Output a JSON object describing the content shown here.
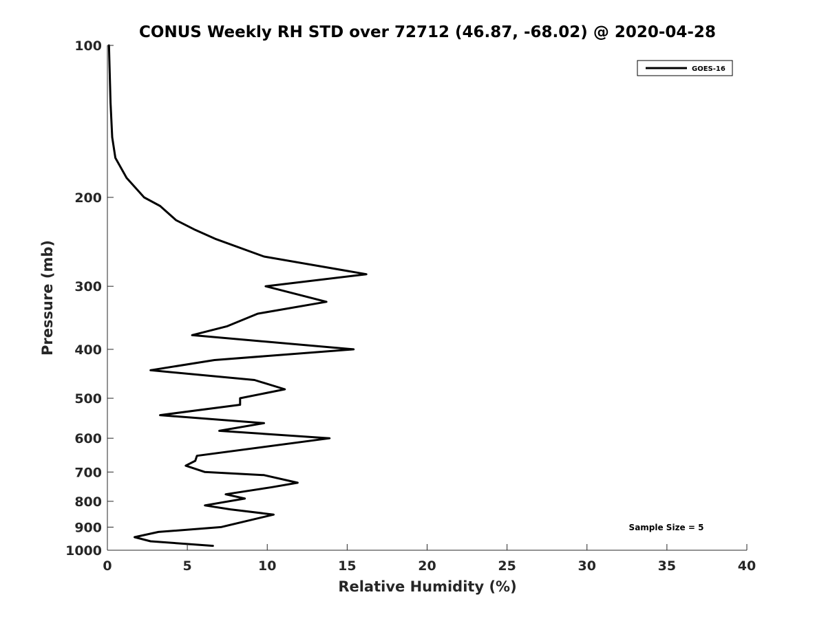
{
  "chart_data": {
    "type": "line",
    "title": "CONUS Weekly RH STD over 72712 (46.87, -68.02) @ 2020-04-28",
    "xlabel": "Relative Humidity (%)",
    "ylabel": "Pressure (mb)",
    "xlim": [
      0,
      40
    ],
    "ylim": [
      100,
      1000
    ],
    "yscale": "log",
    "y_reversed": true,
    "xticks": [
      0,
      5,
      10,
      15,
      20,
      25,
      30,
      35,
      40
    ],
    "yticks": [
      100,
      200,
      300,
      400,
      500,
      600,
      700,
      800,
      900,
      1000
    ],
    "grid": false,
    "legend_position": "top-right",
    "annotation": "Sample Size = 5",
    "series": [
      {
        "name": "GOES-16",
        "color": "#000000",
        "points": [
          [
            6.6,
            980
          ],
          [
            2.7,
            960
          ],
          [
            1.7,
            942
          ],
          [
            3.2,
            920
          ],
          [
            7.1,
            900
          ],
          [
            10.4,
            850
          ],
          [
            7.7,
            830
          ],
          [
            6.1,
            815
          ],
          [
            8.6,
            790
          ],
          [
            7.4,
            775
          ],
          [
            10.3,
            750
          ],
          [
            11.9,
            735
          ],
          [
            9.8,
            710
          ],
          [
            6.1,
            700
          ],
          [
            4.9,
            680
          ],
          [
            5.5,
            665
          ],
          [
            5.6,
            650
          ],
          [
            13.9,
            600
          ],
          [
            7.0,
            580
          ],
          [
            9.8,
            560
          ],
          [
            3.3,
            540
          ],
          [
            8.3,
            515
          ],
          [
            8.3,
            500
          ],
          [
            11.1,
            480
          ],
          [
            9.2,
            460
          ],
          [
            2.7,
            440
          ],
          [
            6.7,
            420
          ],
          [
            15.4,
            400
          ],
          [
            5.3,
            375
          ],
          [
            7.5,
            360
          ],
          [
            9.4,
            340
          ],
          [
            13.7,
            322
          ],
          [
            9.9,
            300
          ],
          [
            16.2,
            284
          ],
          [
            9.8,
            262
          ],
          [
            6.8,
            242
          ],
          [
            5.5,
            232
          ],
          [
            4.3,
            222
          ],
          [
            3.3,
            208
          ],
          [
            2.3,
            200
          ],
          [
            1.2,
            183
          ],
          [
            0.5,
            167
          ],
          [
            0.3,
            152
          ],
          [
            0.2,
            130
          ],
          [
            0.1,
            100
          ]
        ]
      }
    ]
  }
}
